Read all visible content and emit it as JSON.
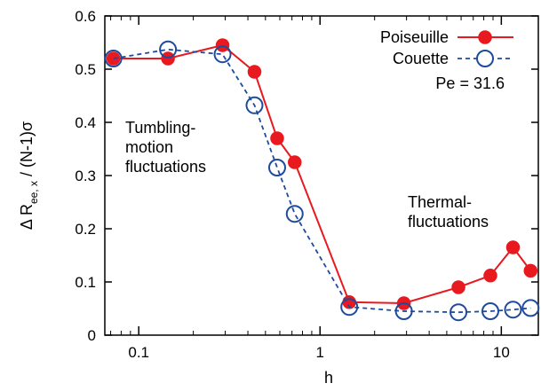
{
  "chart_data": {
    "type": "line",
    "x_scale": "log",
    "xlim": [
      0.065,
      16
    ],
    "ylim": [
      0,
      0.6
    ],
    "xlabel": "h",
    "ylabel_parts": {
      "prefix": "Δ R",
      "sub": "ee, x",
      "suffix": " / (N-1)σ"
    },
    "x_ticks": [
      {
        "value": 0.1,
        "label": "0.1"
      },
      {
        "value": 1,
        "label": "1"
      },
      {
        "value": 10,
        "label": "10"
      }
    ],
    "y_ticks": [
      {
        "value": 0,
        "label": "0"
      },
      {
        "value": 0.1,
        "label": "0.1"
      },
      {
        "value": 0.2,
        "label": "0.2"
      },
      {
        "value": 0.3,
        "label": "0.3"
      },
      {
        "value": 0.4,
        "label": "0.4"
      },
      {
        "value": 0.5,
        "label": "0.5"
      },
      {
        "value": 0.6,
        "label": "0.6"
      }
    ],
    "legend_position": "top-right",
    "grid": false,
    "series": [
      {
        "name": "Poiseuille",
        "color": "#e8191f",
        "line_style": "solid",
        "marker": "filled-circle",
        "x": [
          0.0725,
          0.145,
          0.29,
          0.435,
          0.58,
          0.725,
          1.45,
          2.9,
          5.8,
          8.7,
          11.6,
          14.5
        ],
        "y": [
          0.52,
          0.52,
          0.545,
          0.495,
          0.37,
          0.325,
          0.062,
          0.06,
          0.09,
          0.112,
          0.165,
          0.121
        ]
      },
      {
        "name": "Couette",
        "color": "#1f4b9c",
        "line_style": "dashed",
        "marker": "open-circle",
        "x": [
          0.0725,
          0.145,
          0.29,
          0.435,
          0.58,
          0.725,
          1.45,
          2.9,
          5.8,
          8.7,
          11.6,
          14.5
        ],
        "y": [
          0.52,
          0.537,
          0.528,
          0.432,
          0.315,
          0.228,
          0.053,
          0.045,
          0.043,
          0.045,
          0.048,
          0.051
        ]
      }
    ],
    "annotations": {
      "pe": "Pe =  31.6",
      "tumbling_lines": [
        "Tumbling-",
        "motion",
        "fluctuations"
      ],
      "thermal_lines": [
        "Thermal-",
        "fluctuations"
      ]
    }
  }
}
